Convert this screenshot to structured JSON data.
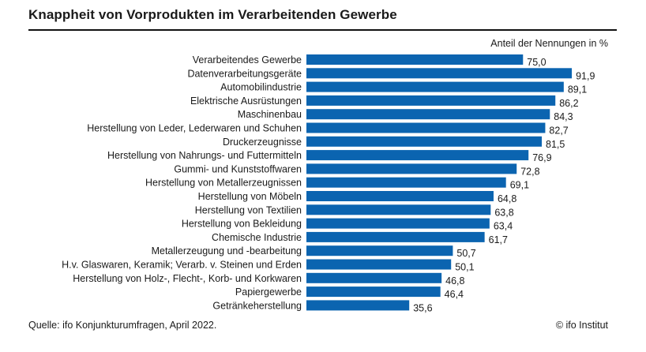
{
  "header": {
    "title": "Knappheit von Vorprodukten im Verarbeitenden Gewerbe",
    "unit_label": "Anteil der Nennungen in %"
  },
  "footer": {
    "source": "Quelle: ifo Konjunkturumfragen, April 2022.",
    "copyright": "© ifo Institut"
  },
  "colors": {
    "bar": "#0b64b0"
  },
  "chart_data": {
    "type": "bar",
    "orientation": "horizontal",
    "title": "Knappheit von Vorprodukten im Verarbeitenden Gewerbe",
    "xlabel": "Anteil der Nennungen in %",
    "ylabel": "",
    "xlim": [
      0,
      100
    ],
    "grid": false,
    "categories": [
      "Verarbeitendes Gewerbe",
      "Datenverarbeitungsgeräte",
      "Automobilindustrie",
      "Elektrische Ausrüstungen",
      "Maschinenbau",
      "Herstellung von Leder, Lederwaren und Schuhen",
      "Druckerzeugnisse",
      "Herstellung von Nahrungs- und Futtermitteln",
      "Gummi- und Kunststoffwaren",
      "Herstellung von Metallerzeugnissen",
      "Herstellung von Möbeln",
      "Herstellung von Textilien",
      "Herstellung von Bekleidung",
      "Chemische Industrie",
      "Metallerzeugung und -bearbeitung",
      "H.v. Glaswaren, Keramik; Verarb. v. Steinen und Erden",
      "Herstellung von Holz-, Flecht-, Korb- und Korkwaren",
      "Papiergewerbe",
      "Getränkeherstellung"
    ],
    "values": [
      75.0,
      91.9,
      89.1,
      86.2,
      84.3,
      82.7,
      81.5,
      76.9,
      72.8,
      69.1,
      64.8,
      63.8,
      63.4,
      61.7,
      50.7,
      50.1,
      46.8,
      46.4,
      35.6
    ],
    "value_labels": [
      "75,0",
      "91,9",
      "89,1",
      "86,2",
      "84,3",
      "82,7",
      "81,5",
      "76,9",
      "72,8",
      "69,1",
      "64,8",
      "63,8",
      "63,4",
      "61,7",
      "50,7",
      "50,1",
      "46,8",
      "46,4",
      "35,6"
    ]
  }
}
